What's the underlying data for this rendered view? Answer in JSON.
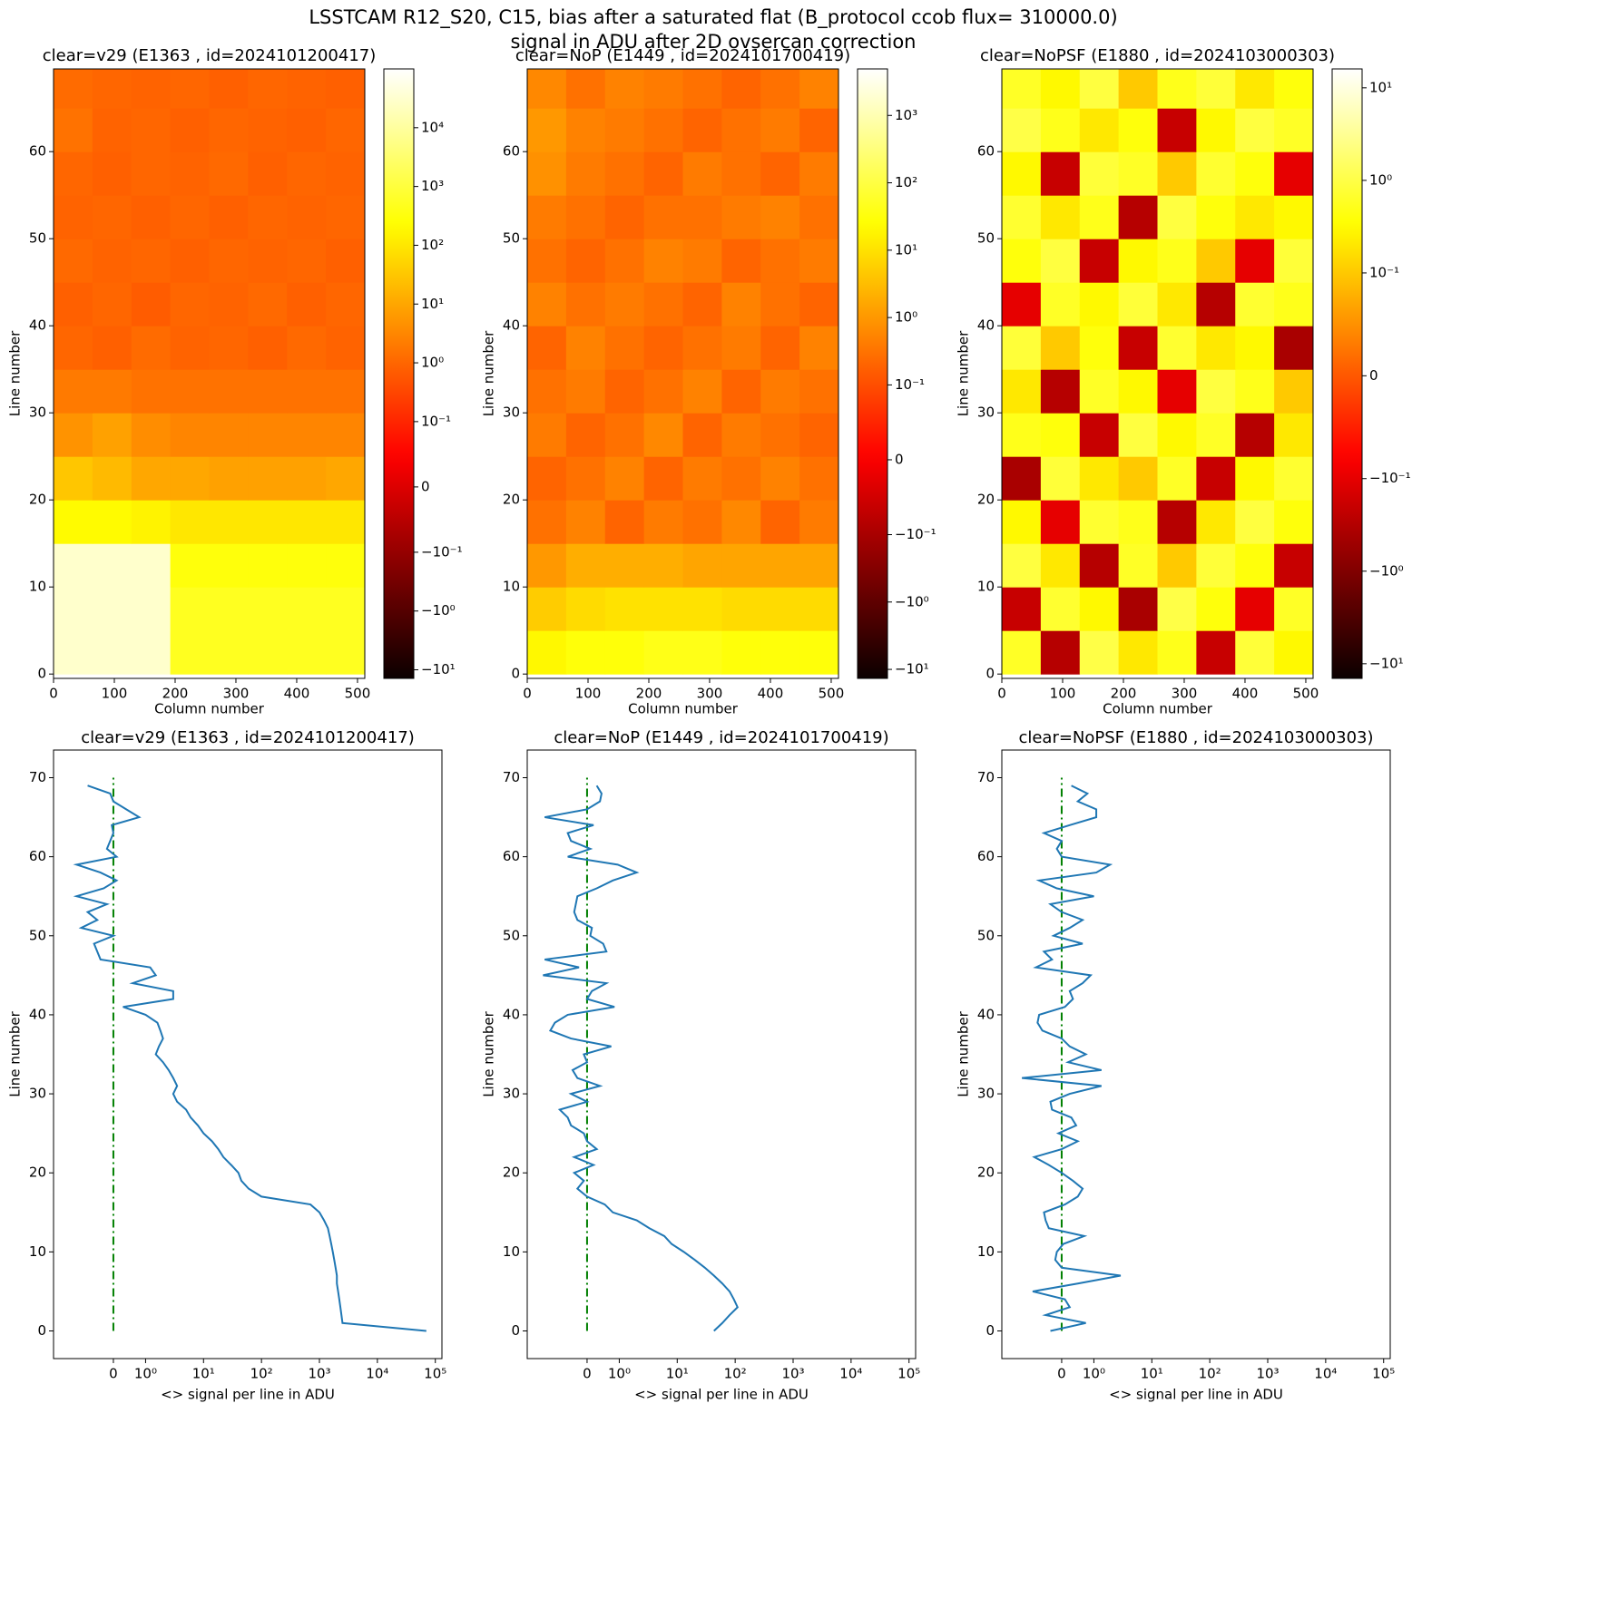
{
  "title": "LSSTCAM R12_S20, C15, bias after a saturated flat (B_protocol ccob flux= 310000.0)",
  "subtitle": "signal in ADU after 2D ovsercan correction",
  "chart_data": [
    {
      "type": "heatmap",
      "title": "clear=v29 (E1363 , id=2024101200417)",
      "xlabel": "Column number",
      "ylabel": "Line number",
      "xlim": [
        0,
        512
      ],
      "ylim": [
        -0.5,
        69.5
      ],
      "xticks": [
        0,
        100,
        200,
        300,
        400,
        500
      ],
      "yticks": [
        0,
        10,
        20,
        30,
        40,
        50,
        60
      ],
      "xbins": [
        0,
        64,
        128,
        192,
        256,
        320,
        384,
        448,
        512
      ],
      "ybins": [
        0,
        5,
        10,
        15,
        20,
        25,
        30,
        35,
        40,
        45,
        50,
        55,
        60,
        65,
        70
      ],
      "colormap": "hot",
      "values": [
        [
          30000,
          30000,
          30000,
          500,
          500,
          500,
          500,
          500
        ],
        [
          30000,
          30000,
          30000,
          500,
          500,
          500,
          500,
          500
        ],
        [
          30000,
          30000,
          30000,
          300,
          300,
          300,
          300,
          300
        ],
        [
          200,
          200,
          150,
          100,
          100,
          100,
          100,
          100
        ],
        [
          30,
          20,
          10,
          10,
          8,
          8,
          8,
          10
        ],
        [
          5,
          8,
          4,
          3,
          3,
          3,
          3,
          3
        ],
        [
          2,
          2,
          1.5,
          1.5,
          1.5,
          1.5,
          1.5,
          1.5
        ],
        [
          1,
          0.8,
          1.2,
          0.9,
          1,
          0.8,
          1.1,
          0.9
        ],
        [
          0.8,
          1,
          0.7,
          1,
          0.9,
          1.1,
          0.8,
          1
        ],
        [
          1.1,
          0.9,
          1,
          0.8,
          1,
          0.9,
          1,
          0.8
        ],
        [
          0.9,
          1,
          0.8,
          1,
          0.8,
          1,
          0.9,
          1
        ],
        [
          1,
          0.8,
          1,
          0.9,
          1.1,
          0.8,
          1,
          0.9
        ],
        [
          1.5,
          0.9,
          1,
          0.8,
          1,
          0.9,
          0.8,
          1
        ],
        [
          1.2,
          1,
          0.9,
          1,
          0.8,
          1,
          0.9,
          0.8
        ]
      ],
      "colorbar": {
        "scale": "symlog",
        "linthresh": 0.1,
        "linscale": 1,
        "lim": [
          -14,
          100000
        ],
        "ticks": [
          {
            "value": -10,
            "label": "−10¹"
          },
          {
            "value": -1,
            "label": "−10⁰"
          },
          {
            "value": -0.1,
            "label": "−10⁻¹"
          },
          0,
          {
            "value": 0.1,
            "label": "10⁻¹"
          },
          {
            "value": 1,
            "label": "10⁰"
          },
          {
            "value": 10,
            "label": "10¹"
          },
          {
            "value": 100,
            "label": "10²"
          },
          {
            "value": 1000,
            "label": "10³"
          },
          {
            "value": 10000,
            "label": "10⁴"
          }
        ]
      }
    },
    {
      "type": "heatmap",
      "title": "clear=NoP (E1449 , id=2024101700419)",
      "xlabel": "Column number",
      "ylabel": "Line number",
      "xlim": [
        0,
        512
      ],
      "ylim": [
        -0.5,
        69.5
      ],
      "xticks": [
        0,
        100,
        200,
        300,
        400,
        500
      ],
      "yticks": [
        0,
        10,
        20,
        30,
        40,
        50,
        60
      ],
      "xbins": [
        0,
        64,
        128,
        192,
        256,
        320,
        384,
        448,
        512
      ],
      "ybins": [
        0,
        5,
        10,
        15,
        20,
        25,
        30,
        35,
        40,
        45,
        50,
        55,
        60,
        65,
        70
      ],
      "colormap": "hot",
      "values": [
        [
          20,
          30,
          30,
          40,
          40,
          30,
          30,
          30
        ],
        [
          5,
          8,
          10,
          10,
          10,
          8,
          8,
          8
        ],
        [
          1,
          2,
          2,
          2,
          1.5,
          1.5,
          1.5,
          1.5
        ],
        [
          0.3,
          0.5,
          0.2,
          0.4,
          0.3,
          0.6,
          0.2,
          0.4
        ],
        [
          0.2,
          0.3,
          0.5,
          0.2,
          0.4,
          0.3,
          0.5,
          0.3
        ],
        [
          0.4,
          0.2,
          0.3,
          0.6,
          0.2,
          0.4,
          0.3,
          0.2
        ],
        [
          0.3,
          0.4,
          0.2,
          0.3,
          0.5,
          0.2,
          0.4,
          0.3
        ],
        [
          0.2,
          0.5,
          0.3,
          0.2,
          0.3,
          0.4,
          0.2,
          0.5
        ],
        [
          0.5,
          0.3,
          0.4,
          0.3,
          0.2,
          0.5,
          0.3,
          0.2
        ],
        [
          0.3,
          0.2,
          0.3,
          0.5,
          0.4,
          0.2,
          0.3,
          0.4
        ],
        [
          0.4,
          0.3,
          0.2,
          0.3,
          0.3,
          0.4,
          0.5,
          0.3
        ],
        [
          0.8,
          0.4,
          0.3,
          0.2,
          0.4,
          0.3,
          0.2,
          0.4
        ],
        [
          1,
          0.5,
          0.4,
          0.3,
          0.2,
          0.3,
          0.4,
          0.2
        ],
        [
          0.6,
          0.3,
          0.5,
          0.4,
          0.3,
          0.2,
          0.3,
          0.5
        ]
      ],
      "colorbar": {
        "scale": "symlog",
        "linthresh": 0.1,
        "linscale": 1,
        "lim": [
          -13.6,
          4900
        ],
        "ticks": [
          {
            "value": -10,
            "label": "−10¹"
          },
          {
            "value": -1,
            "label": "−10⁰"
          },
          {
            "value": -0.1,
            "label": "−10⁻¹"
          },
          0,
          {
            "value": 0.1,
            "label": "10⁻¹"
          },
          {
            "value": 1,
            "label": "10⁰"
          },
          {
            "value": 10,
            "label": "10¹"
          },
          {
            "value": 100,
            "label": "10²"
          },
          {
            "value": 1000,
            "label": "10³"
          }
        ]
      }
    },
    {
      "type": "heatmap",
      "title": "clear=NoPSF (E1880 , id=2024103000303)",
      "xlabel": "Column number",
      "ylabel": "Line number",
      "xlim": [
        0,
        512
      ],
      "ylim": [
        -0.5,
        69.5
      ],
      "xticks": [
        0,
        100,
        200,
        300,
        400,
        500
      ],
      "yticks": [
        0,
        10,
        20,
        30,
        40,
        50,
        60
      ],
      "xbins": [
        0,
        64,
        128,
        192,
        256,
        320,
        384,
        448,
        512
      ],
      "ybins": [
        0,
        5,
        10,
        15,
        20,
        25,
        30,
        35,
        40,
        45,
        50,
        55,
        60,
        65,
        70
      ],
      "colormap": "hot",
      "values": [
        [
          0.6,
          -0.3,
          1,
          0.2,
          0.5,
          -0.2,
          0.8,
          0.3
        ],
        [
          -0.2,
          0.7,
          0.3,
          -0.4,
          1,
          0.4,
          -0.1,
          0.6
        ],
        [
          0.9,
          0.2,
          -0.3,
          0.6,
          0.1,
          0.8,
          0.4,
          -0.2
        ],
        [
          0.3,
          -0.1,
          0.7,
          0.5,
          -0.3,
          0.2,
          0.9,
          0.4
        ],
        [
          -0.4,
          0.8,
          0.2,
          0.1,
          0.6,
          -0.2,
          0.3,
          0.7
        ],
        [
          0.5,
          0.4,
          -0.2,
          0.9,
          0.3,
          0.6,
          -0.3,
          0.2
        ],
        [
          0.2,
          -0.3,
          0.6,
          0.3,
          -0.1,
          0.9,
          0.5,
          0.1
        ],
        [
          0.8,
          0.1,
          0.4,
          -0.2,
          0.7,
          0.2,
          0.3,
          -0.4
        ],
        [
          -0.1,
          0.6,
          0.3,
          0.8,
          0.2,
          -0.3,
          0.7,
          0.5
        ],
        [
          0.4,
          0.9,
          -0.2,
          0.3,
          0.5,
          0.1,
          -0.1,
          0.8
        ],
        [
          0.7,
          0.2,
          0.5,
          -0.3,
          0.9,
          0.4,
          0.2,
          0.3
        ],
        [
          0.3,
          -0.2,
          0.8,
          0.6,
          0.1,
          0.7,
          0.4,
          -0.1
        ],
        [
          1,
          0.5,
          0.2,
          0.4,
          -0.2,
          0.3,
          0.9,
          0.6
        ],
        [
          0.6,
          0.3,
          0.9,
          0.1,
          0.5,
          0.8,
          0.2,
          0.4
        ]
      ],
      "colorbar": {
        "scale": "symlog",
        "linthresh": 0.1,
        "linscale": 1,
        "lim": [
          -14.4,
          16
        ],
        "ticks": [
          {
            "value": -10,
            "label": "−10¹"
          },
          {
            "value": -1,
            "label": "−10⁰"
          },
          {
            "value": -0.1,
            "label": "−10⁻¹"
          },
          0,
          {
            "value": 0.1,
            "label": "10⁻¹"
          },
          {
            "value": 1,
            "label": "10⁰"
          },
          {
            "value": 10,
            "label": "10¹"
          }
        ]
      }
    },
    {
      "type": "line",
      "title": "clear=v29 (E1363 , id=2024101200417)",
      "xlabel": "<> signal per line in ADU",
      "ylabel": "Line number",
      "xscale": {
        "type": "symlog",
        "linthresh": 1,
        "linscale": 0.5
      },
      "xlim": [
        -3,
        130000
      ],
      "ylim": [
        -3.5,
        73.5
      ],
      "xticks": [
        0,
        {
          "value": 1,
          "label": "10⁰"
        },
        {
          "value": 10,
          "label": "10¹"
        },
        {
          "value": 100,
          "label": "10²"
        },
        {
          "value": 1000,
          "label": "10³"
        },
        {
          "value": 10000,
          "label": "10⁴"
        },
        {
          "value": 100000,
          "label": "10⁵"
        }
      ],
      "yticks": [
        0,
        10,
        20,
        30,
        40,
        50,
        60,
        70
      ],
      "color": "#1f77b4",
      "reference_line": {
        "x": 0,
        "y": [
          0,
          70
        ],
        "color": "green",
        "style": "dashdot"
      },
      "y": [
        0,
        1,
        2,
        3,
        4,
        5,
        6,
        7,
        8,
        9,
        10,
        11,
        12,
        13,
        14,
        15,
        16,
        17,
        18,
        19,
        20,
        21,
        22,
        23,
        24,
        25,
        26,
        27,
        28,
        29,
        30,
        31,
        32,
        33,
        34,
        35,
        36,
        37,
        38,
        39,
        40,
        41,
        42,
        43,
        44,
        45,
        46,
        47,
        48,
        49,
        50,
        51,
        52,
        53,
        54,
        55,
        56,
        57,
        58,
        59,
        60,
        61,
        62,
        63,
        64,
        65,
        66,
        67,
        68,
        69
      ],
      "x": [
        70000,
        2500,
        2400,
        2300,
        2200,
        2100,
        2000,
        2000,
        1900,
        1800,
        1700,
        1600,
        1500,
        1400,
        1200,
        1000,
        700,
        100,
        60,
        45,
        40,
        30,
        22,
        18,
        14,
        10,
        8,
        6,
        5,
        3.5,
        3,
        3.5,
        3,
        2.5,
        2,
        1.5,
        1.7,
        2,
        1.8,
        1.6,
        1,
        0.3,
        3,
        3,
        0.6,
        1.5,
        1.2,
        -0.4,
        -0.5,
        -0.6,
        0,
        -1,
        -0.5,
        -0.8,
        -0.2,
        -1.2,
        -0.3,
        0.1,
        -0.4,
        -1.2,
        0.1,
        -0.2,
        -0.1,
        0,
        -0.05,
        0.8,
        0.4,
        0,
        -0.1,
        -0.8
      ]
    },
    {
      "type": "line",
      "title": "clear=NoP (E1449 , id=2024101700419)",
      "xlabel": "<> signal per line in ADU",
      "ylabel": "Line number",
      "xscale": {
        "type": "symlog",
        "linthresh": 1,
        "linscale": 0.5
      },
      "xlim": [
        -3,
        130000
      ],
      "ylim": [
        -3.5,
        73.5
      ],
      "xticks": [
        0,
        {
          "value": 1,
          "label": "10⁰"
        },
        {
          "value": 10,
          "label": "10¹"
        },
        {
          "value": 100,
          "label": "10²"
        },
        {
          "value": 1000,
          "label": "10³"
        },
        {
          "value": 10000,
          "label": "10⁴"
        },
        {
          "value": 100000,
          "label": "10⁵"
        }
      ],
      "yticks": [
        0,
        10,
        20,
        30,
        40,
        50,
        60,
        70
      ],
      "color": "#1f77b4",
      "reference_line": {
        "x": 0,
        "y": [
          0,
          70
        ],
        "color": "green",
        "style": "dashdot"
      },
      "y": [
        0,
        1,
        2,
        3,
        4,
        5,
        6,
        7,
        8,
        9,
        10,
        11,
        12,
        13,
        14,
        15,
        16,
        17,
        18,
        19,
        20,
        21,
        22,
        23,
        24,
        25,
        26,
        27,
        28,
        29,
        30,
        31,
        32,
        33,
        34,
        35,
        36,
        37,
        38,
        39,
        40,
        41,
        42,
        43,
        44,
        45,
        46,
        47,
        48,
        49,
        50,
        51,
        52,
        53,
        54,
        55,
        56,
        57,
        58,
        59,
        60,
        61,
        62,
        63,
        64,
        65,
        66,
        67,
        68,
        69
      ],
      "x": [
        43,
        60,
        80,
        110,
        95,
        80,
        60,
        43,
        30,
        20,
        13,
        8,
        6,
        3.3,
        2,
        0.8,
        0.55,
        0,
        -0.3,
        -0.1,
        -0.4,
        0.2,
        -0.4,
        0.3,
        0,
        -0.1,
        -0.5,
        -0.6,
        -0.85,
        0,
        -0.5,
        0.4,
        -0.3,
        -0.45,
        0,
        -0.1,
        0.75,
        -0.5,
        -1.2,
        -1,
        -0.6,
        0.85,
        0,
        0.15,
        0.6,
        -1.6,
        -0.25,
        -1.5,
        0.6,
        0.5,
        0.1,
        0.15,
        -0.3,
        -0.4,
        -0.35,
        -0.3,
        0.3,
        0.8,
        2,
        0.95,
        -0.6,
        0.1,
        -0.5,
        -0.6,
        0.2,
        -1.5,
        0,
        0.4,
        0.45,
        0.3
      ]
    },
    {
      "type": "line",
      "title": "clear=NoPSF (E1880 , id=2024103000303)",
      "xlabel": "<> signal per line in ADU",
      "ylabel": "Line number",
      "xscale": {
        "type": "symlog",
        "linthresh": 1,
        "linscale": 0.5
      },
      "xlim": [
        -3,
        130000
      ],
      "ylim": [
        -3.5,
        73.5
      ],
      "xticks": [
        0,
        {
          "value": 1,
          "label": "10⁰"
        },
        {
          "value": 10,
          "label": "10¹"
        },
        {
          "value": 100,
          "label": "10²"
        },
        {
          "value": 1000,
          "label": "10³"
        },
        {
          "value": 10000,
          "label": "10⁴"
        },
        {
          "value": 100000,
          "label": "10⁵"
        }
      ],
      "yticks": [
        0,
        10,
        20,
        30,
        40,
        50,
        60,
        70
      ],
      "color": "#1f77b4",
      "reference_line": {
        "x": 0,
        "y": [
          0,
          70
        ],
        "color": "green",
        "style": "dashdot"
      },
      "y": [
        0,
        1,
        2,
        3,
        4,
        5,
        6,
        7,
        8,
        9,
        10,
        11,
        12,
        13,
        14,
        15,
        16,
        17,
        18,
        19,
        20,
        21,
        22,
        23,
        24,
        25,
        26,
        27,
        28,
        29,
        30,
        31,
        32,
        33,
        34,
        35,
        36,
        37,
        38,
        39,
        40,
        41,
        42,
        43,
        44,
        45,
        46,
        47,
        48,
        49,
        50,
        51,
        52,
        53,
        54,
        55,
        56,
        57,
        58,
        59,
        60,
        61,
        62,
        63,
        64,
        65,
        66,
        67,
        68,
        69
      ],
      "x": [
        -0.35,
        0.75,
        -0.5,
        0.25,
        0.1,
        -0.9,
        0.5,
        2.9,
        0,
        -0.2,
        -0.15,
        0.05,
        0.7,
        -0.4,
        -0.5,
        -0.55,
        0.1,
        0.5,
        0.65,
        0.35,
        0,
        -0.4,
        -0.85,
        0,
        0.5,
        -0.1,
        0.45,
        0.3,
        -0.3,
        -0.35,
        0.25,
        1.35,
        -1.35,
        1.35,
        0.2,
        0.75,
        0.25,
        0,
        -0.6,
        -0.75,
        -0.7,
        0.1,
        0.35,
        0.25,
        0.65,
        0.9,
        -0.8,
        -0.3,
        -0.55,
        0.65,
        -0.25,
        0.25,
        0.65,
        0,
        -0.35,
        1,
        -0.15,
        -0.7,
        1.1,
        1.9,
        0,
        -0.15,
        0,
        -0.55,
        0.25,
        1.1,
        1.1,
        0.5,
        0.8,
        0.3
      ]
    }
  ]
}
